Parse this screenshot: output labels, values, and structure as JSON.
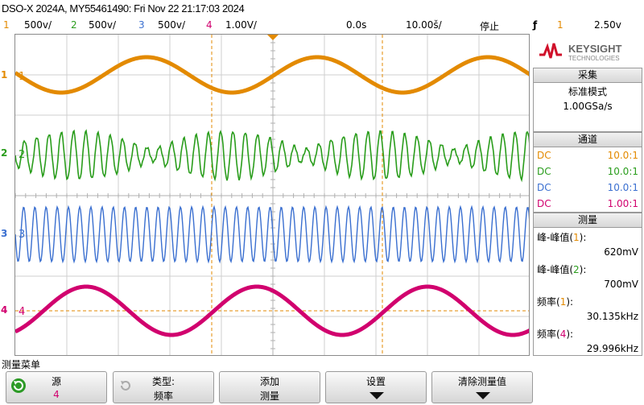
{
  "title": "DSO-X 2024A, MY55461490: Fri Nov 22 21:17:03 2024",
  "status": {
    "ch1": {
      "num": "1",
      "scale": "500ⅴ/",
      "color": "#e38a00"
    },
    "ch2": {
      "num": "2",
      "scale": "500ⅴ/",
      "color": "#2a9d1c"
    },
    "ch3": {
      "num": "3",
      "scale": "500ⅴ/",
      "color": "#3a6fd0"
    },
    "ch4": {
      "num": "4",
      "scale": "1.00V/",
      "color": "#d1006e"
    },
    "delay": "0.0s",
    "timebase": "10.00š/",
    "run_state": "停止",
    "trigger_slope": "ƒ",
    "trigger_source": "1",
    "trigger_level": "2.50ⅴ"
  },
  "channels": {
    "ch1": {
      "marker": "1",
      "label": "1",
      "type": "sine",
      "color": "#e38a00",
      "freq_cycles": 3.1
    },
    "ch2": {
      "marker": "2",
      "label": "2",
      "type": "burst",
      "color": "#2a9d1c"
    },
    "ch3": {
      "marker": "3",
      "label": "3",
      "type": "fast",
      "color": "#3a6fd0"
    },
    "ch4": {
      "marker": "4",
      "label": "4",
      "type": "sine",
      "color": "#d1006e"
    }
  },
  "logo": {
    "brand": "KEYSIGHT",
    "sub": "TECHNOLOGIES"
  },
  "acquire": {
    "header": "采集",
    "mode": "标准模式",
    "rate": "1.00GSa/s"
  },
  "channels_panel": {
    "header": "通道",
    "rows": [
      {
        "coupling": "DC",
        "probe": "10.0:1",
        "color": "#e38a00"
      },
      {
        "coupling": "DC",
        "probe": "10.0:1",
        "color": "#2a9d1c"
      },
      {
        "coupling": "DC",
        "probe": "10.0:1",
        "color": "#3a6fd0"
      },
      {
        "coupling": "DC",
        "probe": "1.00:1",
        "color": "#d1006e"
      }
    ]
  },
  "measure": {
    "header": "测量",
    "items": [
      {
        "name": "峰-峰值(",
        "ch": "1",
        "close": "):",
        "value": "620mV",
        "color": "#e38a00"
      },
      {
        "name": "峰-峰值(",
        "ch": "2",
        "close": "):",
        "value": "700mV",
        "color": "#2a9d1c"
      },
      {
        "name": "频率(",
        "ch": "1",
        "close": "):",
        "value": "30.135kHz",
        "color": "#e38a00"
      },
      {
        "name": "频率(",
        "ch": "4",
        "close": "):",
        "value": "29.996kHz",
        "color": "#d1006e"
      }
    ]
  },
  "menu": {
    "title": "测量菜单",
    "softkeys": [
      {
        "top": "源",
        "bottom": "4",
        "bottom_color": "#d1006e"
      },
      {
        "top": "类型:",
        "bottom": "频率"
      },
      {
        "top": "添加",
        "bottom": "测量"
      },
      {
        "top": "设置",
        "bottom": ""
      },
      {
        "top": "清除测量值",
        "bottom": ""
      }
    ]
  }
}
